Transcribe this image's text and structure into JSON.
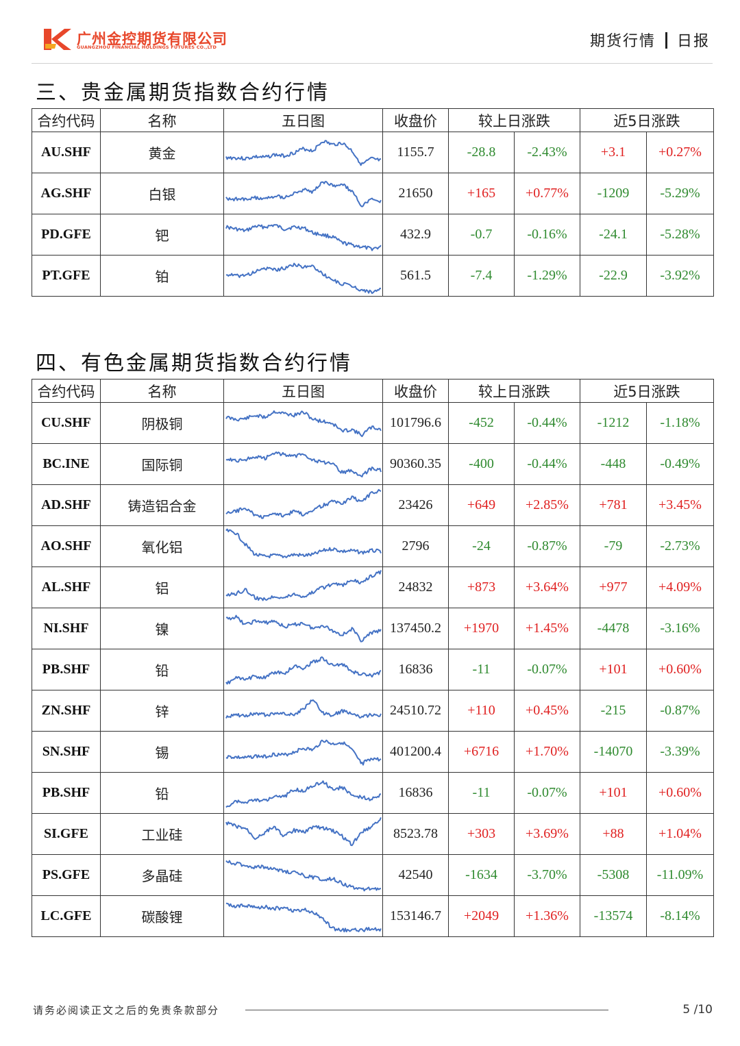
{
  "header": {
    "company_cn": "广州金控期货有限公司",
    "company_en": "GUANGZHOU FINANCIAL HOLDINGS FUTURES CO.,LTD",
    "logo_letter": "K",
    "report_left": "期货行情",
    "report_right": "日报",
    "brand_color": "#e8472b"
  },
  "columns": {
    "code": "合约代码",
    "name": "名称",
    "chart": "五日图",
    "close": "收盘价",
    "daily": "较上日涨跌",
    "five_day": "近5日涨跌"
  },
  "colors": {
    "up": "#e02020",
    "down": "#2f8a2f",
    "sparkline": "#4472c4"
  },
  "section3": {
    "title": "三、贵金属期货指数合约行情",
    "rows": [
      {
        "code": "AU.SHF",
        "name": "黄金",
        "close": "1155.7",
        "chg": "-28.8",
        "pct": "-2.43%",
        "chg5": "+3.1",
        "pct5": "+0.27%",
        "spark": "p1"
      },
      {
        "code": "AG.SHF",
        "name": "白银",
        "close": "21650",
        "chg": "+165",
        "pct": "+0.77%",
        "chg5": "-1209",
        "pct5": "-5.29%",
        "spark": "p1"
      },
      {
        "code": "PD.GFE",
        "name": "钯",
        "close": "432.9",
        "chg": "-0.7",
        "pct": "-0.16%",
        "chg5": "-24.1",
        "pct5": "-5.28%",
        "spark": "p2"
      },
      {
        "code": "PT.GFE",
        "name": "铂",
        "close": "561.5",
        "chg": "-7.4",
        "pct": "-1.29%",
        "chg5": "-22.9",
        "pct5": "-3.92%",
        "spark": "p3"
      }
    ]
  },
  "section4": {
    "title": "四、有色金属期货指数合约行情",
    "rows": [
      {
        "code": "CU.SHF",
        "name": "阴极铜",
        "close": "101796.6",
        "chg": "-452",
        "pct": "-0.44%",
        "chg5": "-1212",
        "pct5": "-1.18%",
        "spark": "c1"
      },
      {
        "code": "BC.INE",
        "name": "国际铜",
        "close": "90360.35",
        "chg": "-400",
        "pct": "-0.44%",
        "chg5": "-448",
        "pct5": "-0.49%",
        "spark": "c1"
      },
      {
        "code": "AD.SHF",
        "name": "铸造铝合金",
        "close": "23426",
        "chg": "+649",
        "pct": "+2.85%",
        "chg5": "+781",
        "pct5": "+3.45%",
        "spark": "r1"
      },
      {
        "code": "AO.SHF",
        "name": "氧化铝",
        "close": "2796",
        "chg": "-24",
        "pct": "-0.87%",
        "chg5": "-79",
        "pct5": "-2.73%",
        "spark": "d1"
      },
      {
        "code": "AL.SHF",
        "name": "铝",
        "close": "24832",
        "chg": "+873",
        "pct": "+3.64%",
        "chg5": "+977",
        "pct5": "+4.09%",
        "spark": "r1"
      },
      {
        "code": "NI.SHF",
        "name": "镍",
        "close": "137450.2",
        "chg": "+1970",
        "pct": "+1.45%",
        "chg5": "-4478",
        "pct5": "-3.16%",
        "spark": "v1"
      },
      {
        "code": "PB.SHF",
        "name": "铅",
        "close": "16836",
        "chg": "-11",
        "pct": "-0.07%",
        "chg5": "+101",
        "pct5": "+0.60%",
        "spark": "w1"
      },
      {
        "code": "ZN.SHF",
        "name": "锌",
        "close": "24510.72",
        "chg": "+110",
        "pct": "+0.45%",
        "chg5": "-215",
        "pct5": "-0.87%",
        "spark": "w2"
      },
      {
        "code": "SN.SHF",
        "name": "锡",
        "close": "401200.4",
        "chg": "+6716",
        "pct": "+1.70%",
        "chg5": "-14070",
        "pct5": "-3.39%",
        "spark": "p1"
      },
      {
        "code": "PB.SHF",
        "name": "铅",
        "close": "16836",
        "chg": "-11",
        "pct": "-0.07%",
        "chg5": "+101",
        "pct5": "+0.60%",
        "spark": "w1"
      },
      {
        "code": "SI.GFE",
        "name": "工业硅",
        "close": "8523.78",
        "chg": "+303",
        "pct": "+3.69%",
        "chg5": "+88",
        "pct5": "+1.04%",
        "spark": "u1"
      },
      {
        "code": "PS.GFE",
        "name": "多晶硅",
        "close": "42540",
        "chg": "-1634",
        "pct": "-3.70%",
        "chg5": "-5308",
        "pct5": "-11.09%",
        "spark": "d2"
      },
      {
        "code": "LC.GFE",
        "name": "碳酸锂",
        "close": "153146.7",
        "chg": "+2049",
        "pct": "+1.36%",
        "chg5": "-13574",
        "pct5": "-8.14%",
        "spark": "d3"
      }
    ]
  },
  "footer": {
    "disclaimer": "请务必阅读正文之后的免责条款部分",
    "page": "5 /10"
  }
}
